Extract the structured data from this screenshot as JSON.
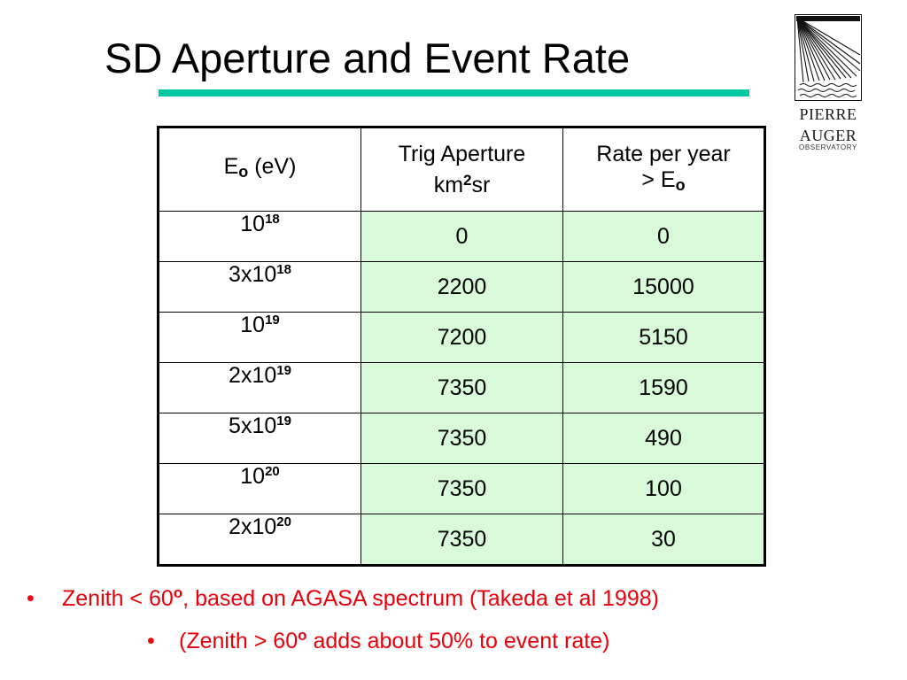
{
  "title": "SD Aperture and Event Rate",
  "logo": {
    "line1": "PIERRE",
    "line2": "AUGER",
    "line3": "OBSERVATORY"
  },
  "table": {
    "header": {
      "col1_main": "E",
      "col1_sub": "o",
      "col1_rest": " (eV)",
      "col2_line1": "Trig Aperture",
      "col2_pre": "km",
      "col2_sup": "2",
      "col2_post": "sr",
      "col3_line1": "Rate per year",
      "col3_pre": "> E",
      "col3_sub": "o"
    },
    "rows": [
      {
        "base": "10",
        "exp": "18",
        "aperture": "0",
        "rate": "0"
      },
      {
        "base": "3x10",
        "exp": "18",
        "aperture": "2200",
        "rate": "15000"
      },
      {
        "base": "10",
        "exp": "19",
        "aperture": "7200",
        "rate": "5150"
      },
      {
        "base": "2x10",
        "exp": "19",
        "aperture": "7350",
        "rate": "1590"
      },
      {
        "base": "5x10",
        "exp": "19",
        "aperture": "7350",
        "rate": "490"
      },
      {
        "base": "10",
        "exp": "20",
        "aperture": "7350",
        "rate": "100"
      },
      {
        "base": "2x10",
        "exp": "20",
        "aperture": "7350",
        "rate": "30"
      }
    ]
  },
  "bullets": [
    {
      "marker": "•",
      "pre": "Zenith < 60",
      "deg": "o",
      "post": ", based on AGASA spectrum (Takeda et al 1998)"
    },
    {
      "marker": "•",
      "pre": "(Zenith > 60",
      "deg": "o",
      "post": " adds about 50% to event rate)"
    }
  ],
  "colors": {
    "title_rule": "#00c8a0",
    "cell_fill": "#d9fad9",
    "bullet_text": "#e8000a"
  }
}
